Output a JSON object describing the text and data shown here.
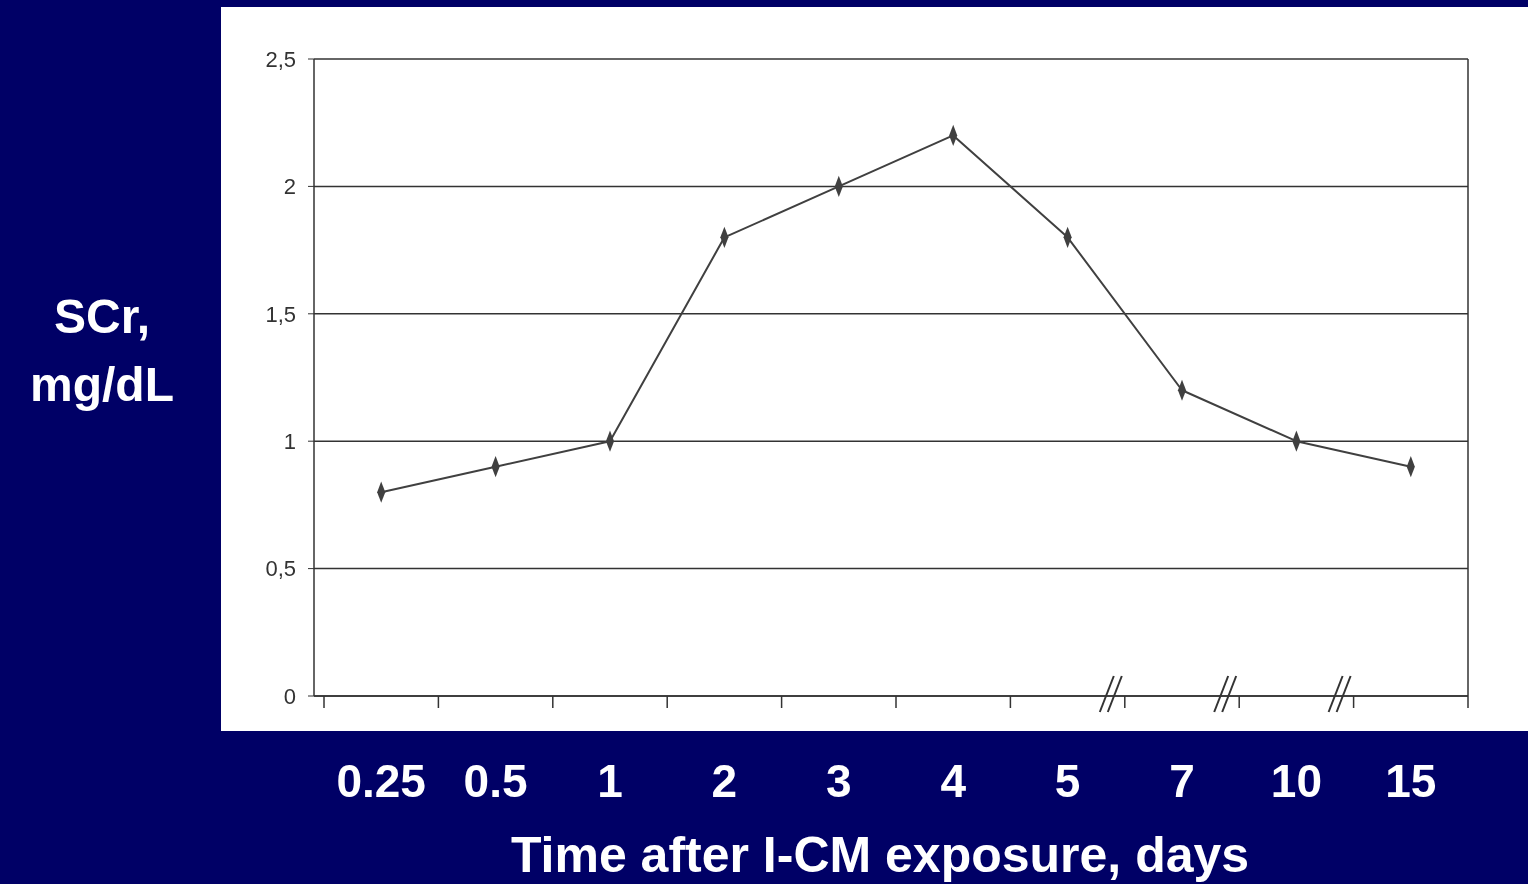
{
  "chart_data": {
    "type": "line",
    "xlabel": "Time after I-CM exposure, days",
    "ylabel": "SCr,\nmg/dL",
    "categories": [
      "0.25",
      "0.5",
      "1",
      "2",
      "3",
      "4",
      "5",
      "7",
      "10",
      "15"
    ],
    "series": [
      {
        "color": "#404040",
        "values": [
          0.8,
          0.9,
          1.0,
          1.8,
          2.0,
          2.2,
          1.8,
          1.2,
          1.0,
          0.9
        ]
      }
    ],
    "ylim": [
      0,
      2.5
    ],
    "yticks": [
      0,
      {
        "value": 0.5,
        "label": "0,5"
      },
      1,
      {
        "value": 1.5,
        "label": "1,5"
      },
      2,
      {
        "value": 2.5,
        "label": "2,5"
      }
    ],
    "grid": "y",
    "marker": "diamond",
    "line_style": "solid"
  }
}
